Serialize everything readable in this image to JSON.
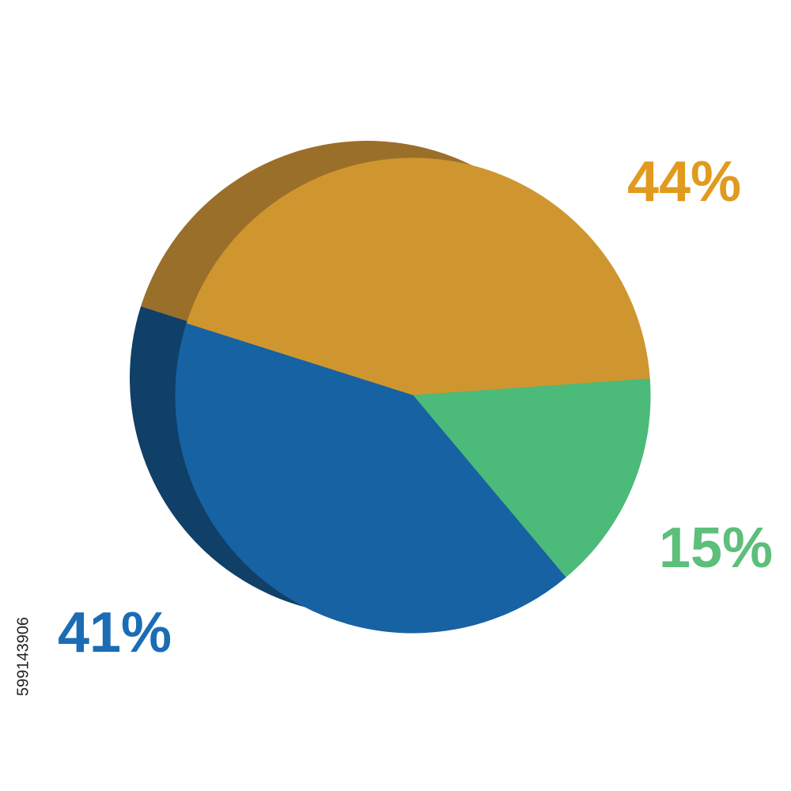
{
  "chart_data": {
    "type": "pie",
    "categories": [
      null,
      null,
      null
    ],
    "values": [
      44,
      15,
      41
    ],
    "value_labels": [
      "44%",
      "15%",
      "41%"
    ],
    "colors": [
      "#cf962f",
      "#4cba79",
      "#1762a3"
    ],
    "side_colors": [
      "#9a6f2a",
      "#1f9e5b",
      "#103f68"
    ],
    "start_angle": 197.6,
    "direction": "clockwise"
  },
  "stock_id": "599143906"
}
